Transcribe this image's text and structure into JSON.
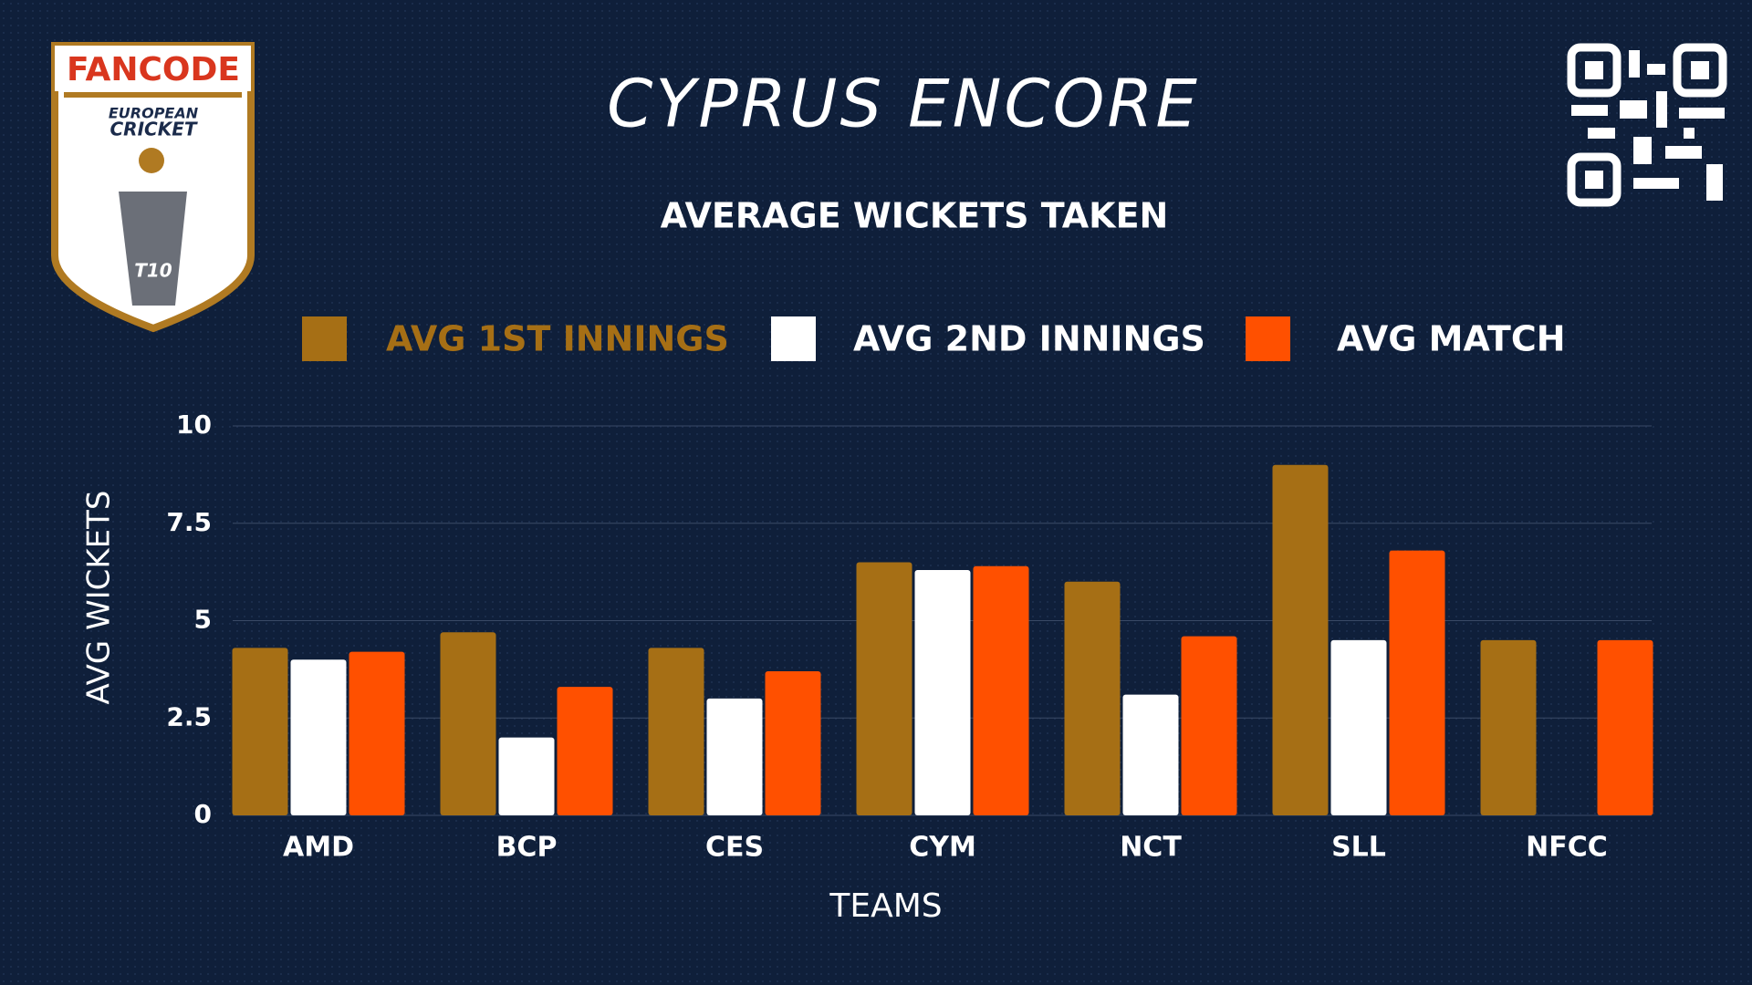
{
  "logo": {
    "brand": "FANCODE",
    "line1": "EUROPEAN",
    "line2": "CRICKET",
    "badge": "T10"
  },
  "chart_data": {
    "type": "bar",
    "title": "CYPRUS ENCORE",
    "subtitle": "AVERAGE WICKETS TAKEN",
    "x_label": "TEAMS",
    "y_label": "AVG WICKETS",
    "categories": [
      "AMD",
      "BCP",
      "CES",
      "CYM",
      "NCT",
      "SLL",
      "NFCC"
    ],
    "series": [
      {
        "name": "AVG 1ST INNINGS",
        "color": "#a66f15",
        "values": [
          4.3,
          4.7,
          4.3,
          6.5,
          6.0,
          9.0,
          4.5
        ]
      },
      {
        "name": "AVG 2ND INNINGS",
        "color": "#ffffff",
        "values": [
          4.0,
          2.0,
          3.0,
          6.3,
          3.1,
          4.5,
          0
        ]
      },
      {
        "name": "AVG MATCH",
        "color": "#ff5000",
        "values": [
          4.2,
          3.3,
          3.7,
          6.4,
          4.6,
          6.8,
          4.5
        ]
      }
    ],
    "ylim": [
      0,
      10
    ],
    "yticks": [
      0,
      2.5,
      5,
      7.5,
      10
    ],
    "grid": true,
    "legend": "top"
  }
}
